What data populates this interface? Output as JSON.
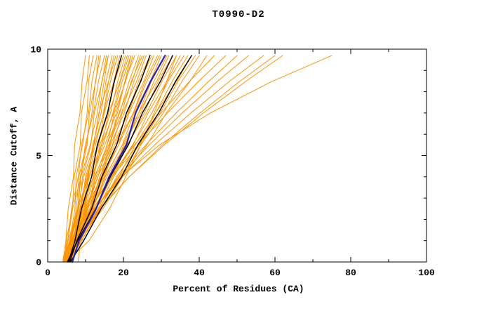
{
  "page": {
    "background": "#ffffff"
  },
  "chart_data": {
    "type": "line",
    "title": "T0990-D2",
    "xlabel": "Percent of Residues (CA)",
    "ylabel": "Distance Cutoff, A",
    "xlim": [
      0,
      100
    ],
    "ylim": [
      0,
      10
    ],
    "x_ticks_major": [
      0,
      20,
      40,
      60,
      80,
      100
    ],
    "x_ticks_minor": [
      10,
      30,
      50,
      70,
      90
    ],
    "y_ticks_major": [
      0,
      5,
      10
    ],
    "y_ticks_minor": [
      1,
      2,
      3,
      4,
      6,
      7,
      8,
      9
    ],
    "grid": false,
    "legend": "none",
    "colors": {
      "prediction": "#ff9400",
      "reference": "#000000",
      "highlight": "#2222bb"
    },
    "widths": {
      "prediction": 1,
      "reference": 1.5,
      "highlight": 2.2
    },
    "sample_y": [
      0,
      1,
      2.5,
      4,
      5.5,
      7,
      8.5,
      9.7
    ],
    "series": [
      {
        "role": "prediction",
        "x": [
          4,
          4.8,
          5.4,
          6.8,
          7.1,
          8.5,
          9.1,
          10
        ]
      },
      {
        "role": "prediction",
        "x": [
          4.5,
          4.9,
          6.5,
          7,
          8.6,
          8.9,
          10.4,
          11
        ]
      },
      {
        "role": "prediction",
        "x": [
          5,
          5.8,
          7.2,
          7.5,
          9.2,
          10.4,
          10.8,
          12
        ]
      },
      {
        "role": "prediction",
        "x": [
          4.2,
          5.3,
          6.3,
          8.1,
          8.9,
          10.8,
          11.7,
          13
        ]
      },
      {
        "role": "prediction",
        "x": [
          5.5,
          6,
          7.9,
          8.6,
          10.4,
          11,
          12.7,
          13.5
        ]
      },
      {
        "role": "prediction",
        "x": [
          4.8,
          5.9,
          7.6,
          8.2,
          10.2,
          11.7,
          12.6,
          14
        ]
      },
      {
        "role": "prediction",
        "x": [
          4,
          5.3,
          6.6,
          8.8,
          9.9,
          12.1,
          13.4,
          15
        ]
      },
      {
        "role": "prediction",
        "x": [
          5.2,
          6,
          8.2,
          9.2,
          11.4,
          12.3,
          14.4,
          15.5
        ]
      },
      {
        "role": "prediction",
        "x": [
          4.5,
          5.8,
          7.9,
          8.8,
          11.2,
          13.1,
          14.3,
          16
        ]
      },
      {
        "role": "prediction",
        "x": [
          5.8,
          7.2,
          8.5,
          10.7,
          11.9,
          14.1,
          15.4,
          17
        ]
      },
      {
        "role": "prediction",
        "x": [
          4.3,
          5.4,
          8,
          9.5,
          12.2,
          13.5,
          16.1,
          17.5
        ]
      },
      {
        "role": "prediction",
        "x": [
          5,
          6.4,
          8.8,
          10,
          12.6,
          14.7,
          16.1,
          18
        ]
      },
      {
        "role": "prediction",
        "x": [
          4.6,
          6.2,
          8,
          10.6,
          12.2,
          14.8,
          16.6,
          18.5
        ]
      },
      {
        "role": "prediction",
        "x": [
          5.4,
          6.5,
          9.2,
          10.8,
          13.5,
          14.9,
          17.5,
          19
        ]
      },
      {
        "role": "prediction",
        "x": [
          4,
          5.8,
          8.5,
          10.2,
          13.3,
          15.9,
          17.7,
          20
        ]
      },
      {
        "role": "prediction",
        "x": [
          5.6,
          7.3,
          9.2,
          12,
          13.8,
          16.6,
          18.5,
          20.5
        ]
      },
      {
        "role": "prediction",
        "x": [
          4.4,
          5.8,
          9,
          11,
          14.2,
          16.1,
          19.1,
          21
        ]
      },
      {
        "role": "prediction",
        "x": [
          5.1,
          6.9,
          9.7,
          11.5,
          14.6,
          17.2,
          19.2,
          21.5
        ]
      },
      {
        "role": "prediction",
        "x": [
          4.7,
          6.7,
          9,
          12.1,
          14.2,
          17.4,
          19.7,
          22
        ]
      },
      {
        "role": "prediction",
        "x": [
          5.9,
          7.3,
          10.5,
          12.5,
          15.7,
          17.6,
          20.6,
          22.5
        ]
      },
      {
        "role": "prediction",
        "x": [
          4.2,
          6.2,
          9.5,
          11.6,
          15.1,
          18.1,
          20.4,
          23
        ]
      },
      {
        "role": "prediction",
        "x": [
          5.3,
          7.4,
          9.9,
          13.3,
          15.6,
          19,
          21.5,
          24
        ]
      },
      {
        "role": "prediction",
        "x": [
          4.9,
          6.6,
          10.3,
          12.8,
          16.4,
          18.8,
          22.3,
          24.5
        ]
      },
      {
        "role": "prediction",
        "x": [
          4,
          6.3,
          9.8,
          12.3,
          16.1,
          19.5,
          22.1,
          25
        ]
      },
      {
        "role": "prediction",
        "x": [
          5.7,
          7.9,
          10.6,
          14.2,
          16.6,
          20.2,
          22.8,
          25.5
        ]
      },
      {
        "role": "prediction",
        "x": [
          4.5,
          6.4,
          10.4,
          13.2,
          17.1,
          19.7,
          23.5,
          26
        ]
      },
      {
        "role": "prediction",
        "x": [
          5,
          7.4,
          11.1,
          13.7,
          17.7,
          21.2,
          24,
          27
        ]
      },
      {
        "role": "prediction",
        "x": [
          4.3,
          6.9,
          10.1,
          14.2,
          17.2,
          21.3,
          24.4,
          27.5
        ]
      },
      {
        "role": "prediction",
        "x": [
          5.5,
          7.5,
          11.6,
          14.6,
          18.7,
          21.5,
          25.4,
          28
        ]
      },
      {
        "role": "prediction",
        "x": [
          4.8,
          7.4,
          11.4,
          14.4,
          18.7,
          22.6,
          25.7,
          29
        ]
      },
      {
        "role": "prediction",
        "x": [
          4.1,
          6.9,
          10.5,
          14.9,
          18.2,
          22.6,
          26.2,
          29.5
        ]
      },
      {
        "role": "prediction",
        "x": [
          5.2,
          7.5,
          11.9,
          15.2,
          19.7,
          22.8,
          27.1,
          30
        ]
      },
      {
        "role": "prediction",
        "x": [
          4.6,
          7.4,
          11.8,
          15.1,
          19.8,
          24,
          27.4,
          31
        ]
      },
      {
        "role": "prediction",
        "x": [
          5.8,
          8.7,
          12.2,
          16.7,
          20.1,
          24.6,
          28.1,
          31.5
        ]
      },
      {
        "role": "prediction",
        "x": [
          4.4,
          6.9,
          11.8,
          15.6,
          20.5,
          24,
          28.8,
          32
        ]
      },
      {
        "role": "prediction",
        "x": [
          5,
          8,
          12.6,
          16.1,
          21.1,
          25.5,
          29.2,
          33
        ]
      },
      {
        "role": "prediction",
        "x": [
          4.7,
          7.9,
          12.1,
          17.1,
          21,
          26.1,
          30.2,
          34
        ]
      },
      {
        "role": "prediction",
        "x": [
          5.4,
          8.2,
          13.3,
          17.4,
          22.6,
          26.5,
          31.5,
          35
        ]
      },
      {
        "role": "prediction",
        "x": [
          4.2,
          7.6,
          12.8,
          16.9,
          22.4,
          27.5,
          31.8,
          36
        ]
      },
      {
        "role": "prediction",
        "x": [
          5.6,
          9,
          13.5,
          18.8,
          23.1,
          28.5,
          32.9,
          37
        ]
      },
      {
        "role": "prediction",
        "x": [
          4.9,
          8,
          13.7,
          18.3,
          24.1,
          28.5,
          34.1,
          38
        ]
      },
      {
        "role": "prediction",
        "x": [
          4.3,
          8,
          13.7,
          18.2,
          24.2,
          29.7,
          34.4,
          39
        ]
      },
      {
        "role": "prediction",
        "x": [
          5.1,
          8.9,
          13.9,
          19.8,
          24.6,
          30.5,
          35.5,
          40
        ]
      },
      {
        "role": "prediction",
        "x": [
          4.6,
          8.2,
          14.6,
          19.8,
          26.2,
          31.3,
          37.6,
          42
        ]
      },
      {
        "role": "prediction",
        "x": [
          5.5,
          7.1,
          11.3,
          16.6,
          22.9,
          29.9,
          37.5,
          44
        ]
      },
      {
        "role": "prediction",
        "x": [
          4.8,
          6.5,
          11.1,
          17,
          23.9,
          31.6,
          39.9,
          47
        ]
      },
      {
        "role": "prediction",
        "x": [
          6,
          7.8,
          12.6,
          18.7,
          25.9,
          33.9,
          42.6,
          50
        ]
      },
      {
        "role": "prediction",
        "x": [
          5.2,
          7.2,
          12.4,
          19,
          26.8,
          35.5,
          44.9,
          53
        ]
      },
      {
        "role": "prediction",
        "x": [
          4.5,
          6.7,
          12.4,
          19.7,
          28.2,
          37.8,
          48.1,
          57
        ]
      },
      {
        "role": "prediction",
        "x": [
          5.8,
          8,
          13.9,
          21.5,
          30.3,
          40.2,
          50.8,
          60
        ]
      },
      {
        "role": "prediction",
        "x": [
          5,
          7.3,
          13.6,
          21.5,
          30.8,
          41.1,
          52.4,
          62
        ]
      },
      {
        "role": "prediction",
        "x": [
          8,
          8.7,
          12.5,
          19.4,
          29.5,
          42.9,
          59.4,
          75
        ]
      },
      {
        "role": "prediction",
        "x": [
          4,
          6.5,
          8.7,
          10.5,
          12.1,
          13.6,
          14.9,
          16
        ]
      },
      {
        "role": "prediction",
        "x": [
          4.5,
          8.1,
          11.3,
          13.9,
          16.3,
          18.4,
          20.4,
          22
        ]
      },
      {
        "role": "prediction",
        "x": [
          5,
          10.9,
          16.3,
          20.6,
          24.5,
          28.1,
          31.4,
          34
        ]
      },
      {
        "role": "reference",
        "x": [
          5.5,
          7.2,
          8.9,
          11.6,
          13.1,
          15.8,
          17.6,
          19.5
        ]
      },
      {
        "role": "reference",
        "x": [
          5.8,
          7.7,
          11.6,
          14.3,
          18.2,
          20.8,
          24.6,
          27
        ]
      },
      {
        "role": "reference",
        "x": [
          5.2,
          7.9,
          12.7,
          16.5,
          21.3,
          25,
          29.8,
          33
        ]
      },
      {
        "role": "reference",
        "x": [
          6,
          9.5,
          14.1,
          19.5,
          23.8,
          29.3,
          33.8,
          38
        ]
      },
      {
        "role": "highlight",
        "x": [
          6.5,
          8.3,
          12.8,
          16.2,
          20.8,
          23.2,
          27.2,
          31
        ]
      }
    ]
  }
}
